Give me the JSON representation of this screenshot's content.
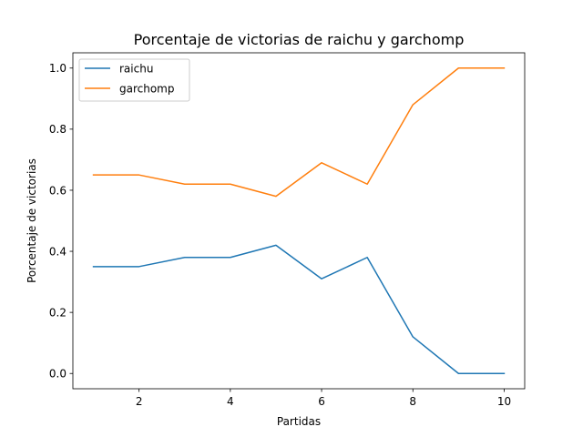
{
  "chart_data": {
    "type": "line",
    "title": "Porcentaje de victorias de raichu y garchomp",
    "xlabel": "Partidas",
    "ylabel": "Porcentaje de victorias",
    "x": [
      1,
      2,
      3,
      4,
      5,
      6,
      7,
      8,
      9,
      10
    ],
    "xlim": [
      0.55,
      10.45
    ],
    "ylim": [
      -0.05,
      1.05
    ],
    "xticks": [
      2,
      4,
      6,
      8,
      10
    ],
    "yticks": [
      0.0,
      0.2,
      0.4,
      0.6,
      0.8,
      1.0
    ],
    "xtick_labels": [
      "2",
      "4",
      "6",
      "8",
      "10"
    ],
    "ytick_labels": [
      "0.0",
      "0.2",
      "0.4",
      "0.6",
      "0.8",
      "1.0"
    ],
    "grid": false,
    "legend_position": "top-left",
    "series": [
      {
        "name": "raichu",
        "color": "#1f77b4",
        "values": [
          0.35,
          0.35,
          0.38,
          0.38,
          0.42,
          0.31,
          0.38,
          0.12,
          0.0,
          0.0
        ]
      },
      {
        "name": "garchomp",
        "color": "#ff7f0e",
        "values": [
          0.65,
          0.65,
          0.62,
          0.62,
          0.58,
          0.69,
          0.62,
          0.88,
          1.0,
          1.0
        ]
      }
    ]
  }
}
